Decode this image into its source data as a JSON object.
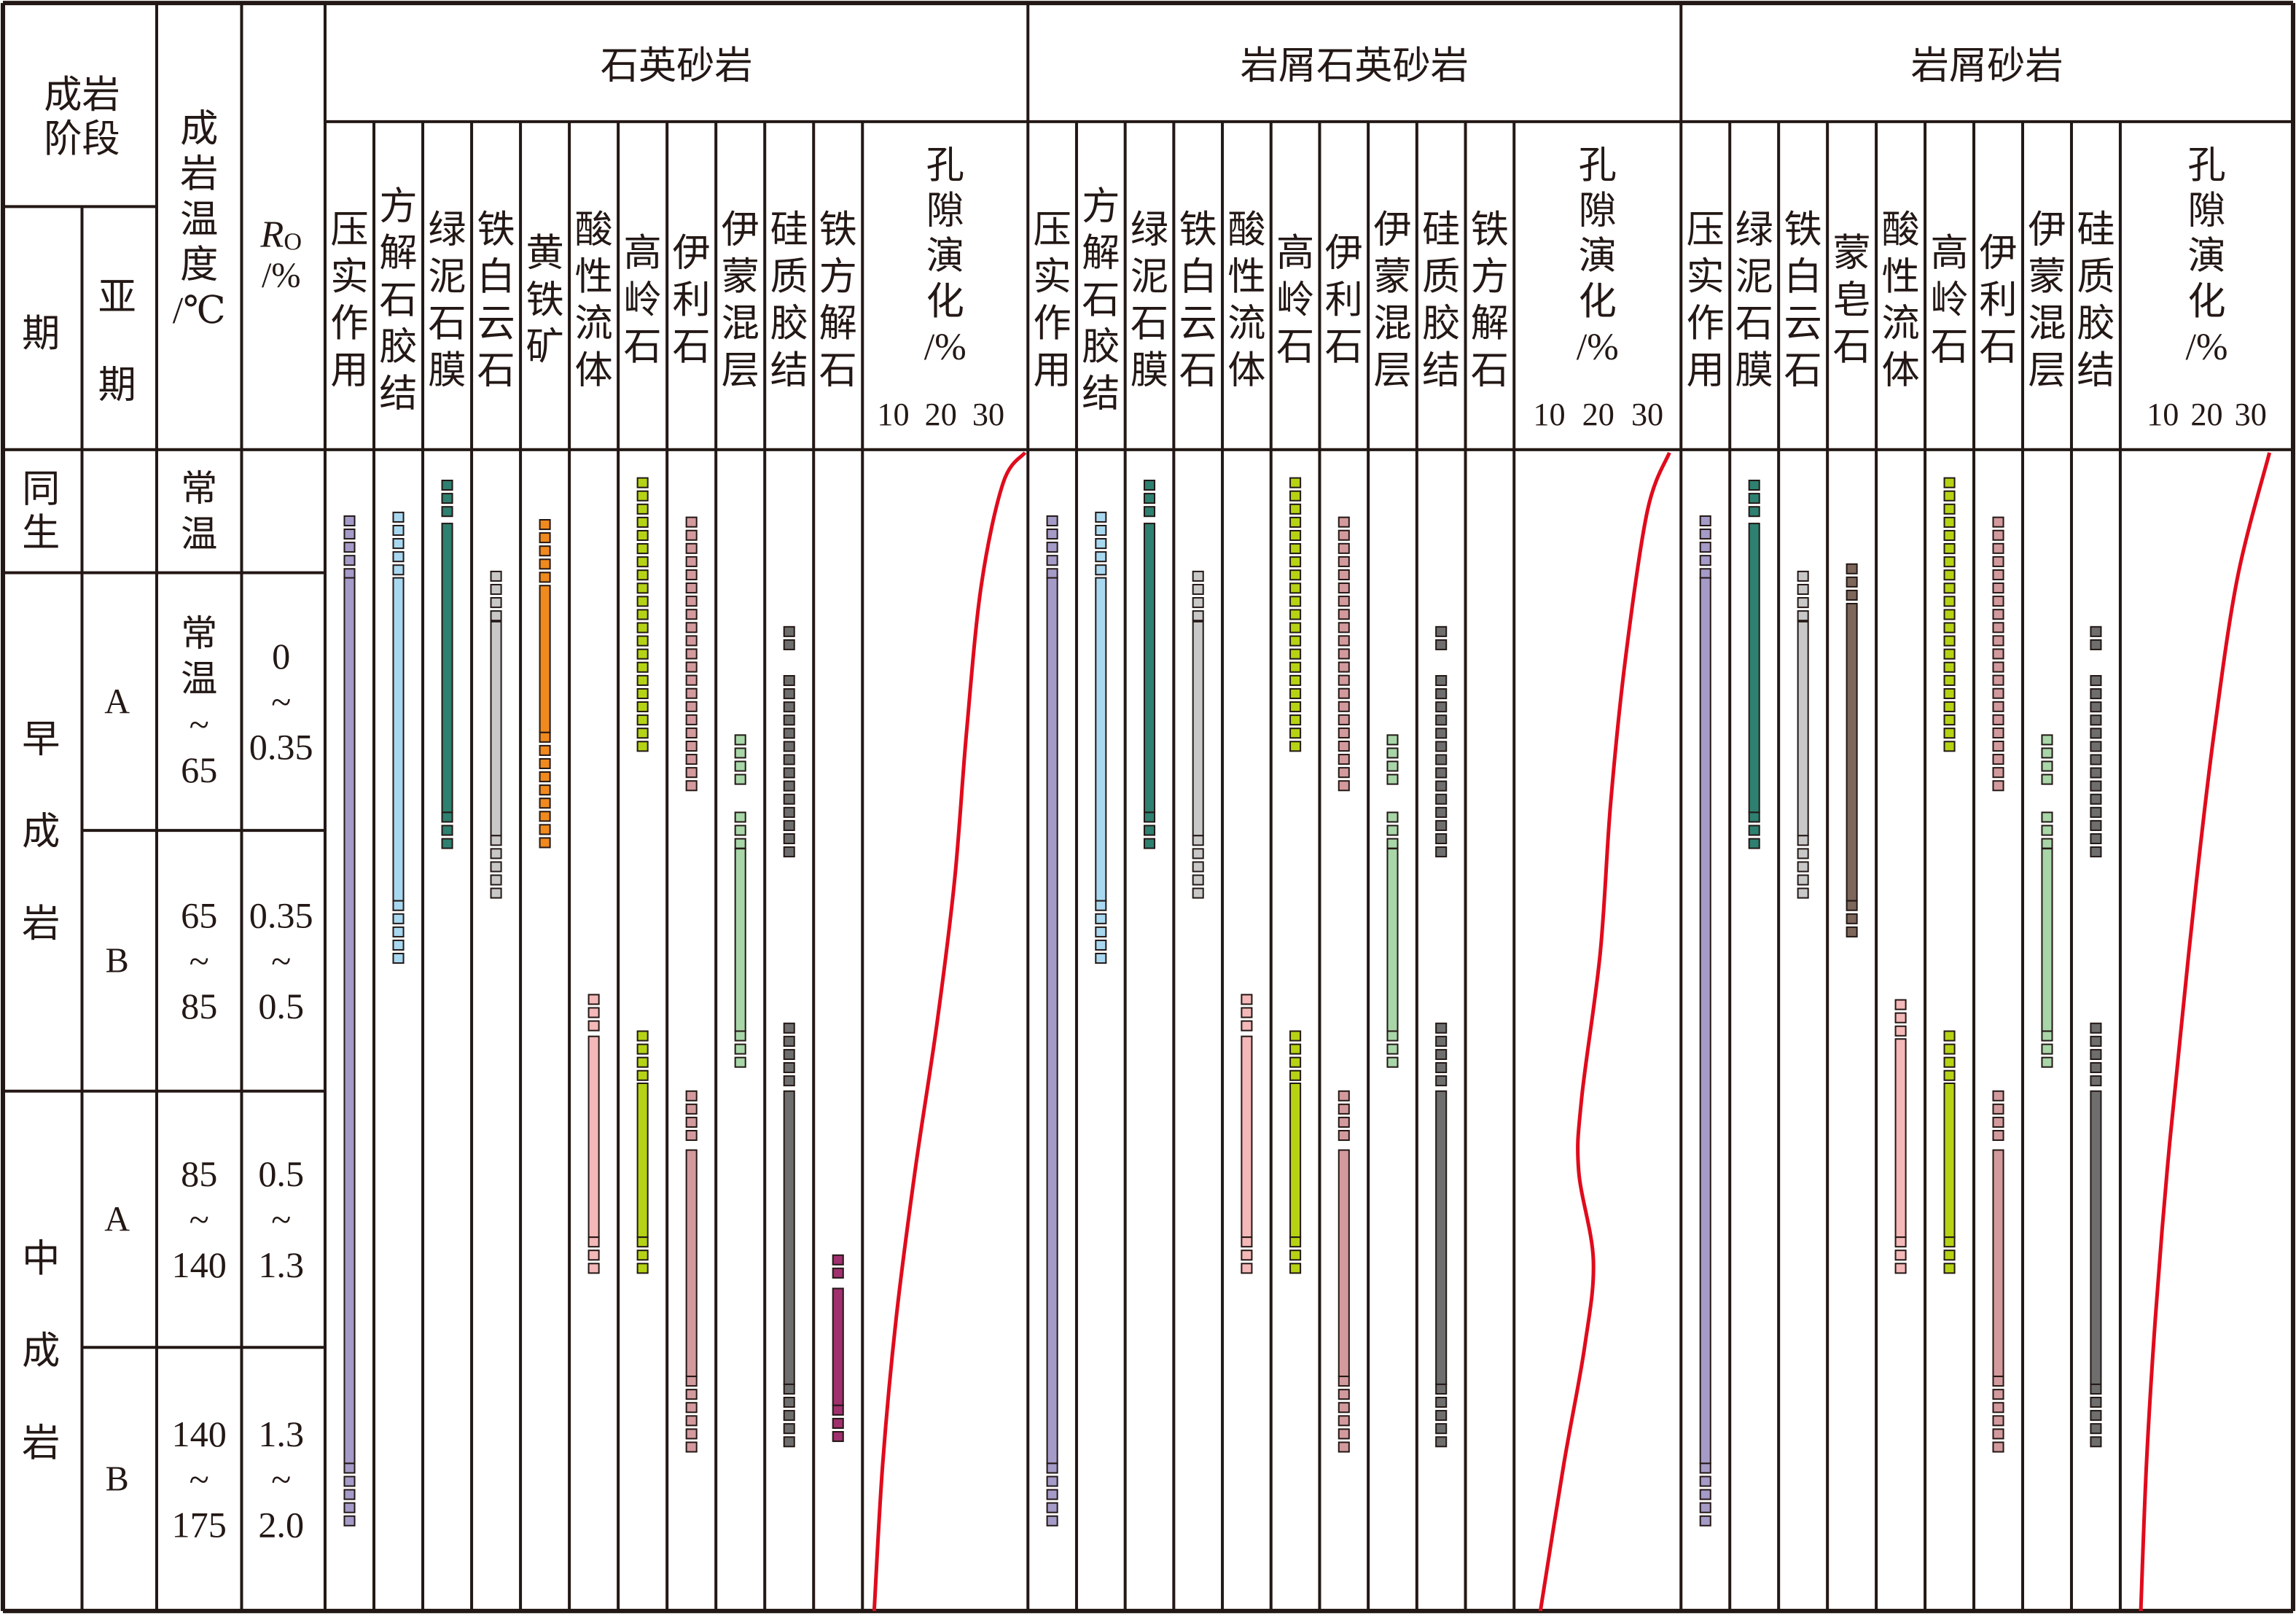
{
  "left_header": {
    "stage": "成岩阶段",
    "stage_lines": [
      "成岩",
      "阶段"
    ],
    "period": "期",
    "subperiod": "亚期",
    "temperature": "成岩温度/℃",
    "ro": {
      "symbol": "R",
      "subscript": "O",
      "unit": "/%"
    }
  },
  "stages": [
    {
      "period": "同生",
      "sub": "",
      "temp": "常温",
      "ro": ""
    },
    {
      "period": "早成岩",
      "sub": "A",
      "temp": "常温~65",
      "ro": "0~0.35"
    },
    {
      "period": "",
      "sub": "B",
      "temp": "65~85",
      "ro": "0.35~0.5"
    },
    {
      "period": "中成岩",
      "sub": "A",
      "temp": "85~140",
      "ro": "0.5~1.3"
    },
    {
      "period": "",
      "sub": "B",
      "temp": "140~175",
      "ro": "1.3~2.0"
    }
  ],
  "colors": {
    "compaction": "#a59bc8",
    "calcite": "#a8d8f0",
    "chlorite": "#2e8070",
    "ankerite": "#c8c8c8",
    "pyrite": "#f08a1e",
    "acid": "#f4b8b8",
    "kaolinite": "#b5d314",
    "illite": "#d39a9d",
    "illite_smectite": "#a8d6a8",
    "silica": "#6e6e6e",
    "ferrocalcite": "#a0306e",
    "smectite": "#7d665a",
    "porosity_curve": "#e00b1c",
    "outline": "#231815"
  },
  "groups": [
    {
      "title": "石英砂岩",
      "porosity_label": "孔隙演化/%",
      "porosity_ticks": [
        "10",
        "20",
        "30"
      ],
      "columns": [
        {
          "label": "压实作用",
          "color": "compaction",
          "segments": [
            [
              0.54,
              1.02,
              "d"
            ],
            [
              1.02,
              4.44,
              "s"
            ],
            [
              4.44,
              4.68,
              "d"
            ]
          ]
        },
        {
          "label": "方解石胶结",
          "color": "calcite",
          "segments": [
            [
              0.51,
              1.02,
              "d"
            ],
            [
              1.02,
              2.27,
              "s"
            ],
            [
              2.27,
              2.51,
              "d"
            ]
          ]
        },
        {
          "label": "绿泥石膜",
          "color": "chlorite",
          "segments": [
            [
              0.25,
              0.6,
              "d"
            ],
            [
              0.6,
              1.93,
              "s"
            ],
            [
              1.93,
              2.1,
              "d"
            ]
          ]
        },
        {
          "label": "铁白云石",
          "color": "ankerite",
          "segments": [
            [
              0.99,
              1.19,
              "d"
            ],
            [
              1.19,
              2.02,
              "s"
            ],
            [
              2.02,
              2.26,
              "d"
            ]
          ]
        },
        {
          "label": "黄铁矿",
          "color": "pyrite",
          "segments": [
            [
              0.57,
              1.05,
              "d"
            ],
            [
              1.05,
              1.62,
              "s"
            ],
            [
              1.62,
              2.1,
              "d"
            ]
          ]
        },
        {
          "label": "酸性流体",
          "color": "acid",
          "segments": [
            [
              2.63,
              2.79,
              "d"
            ],
            [
              2.79,
              3.57,
              "s"
            ],
            [
              3.57,
              3.74,
              "d"
            ]
          ]
        },
        {
          "label": "高岭石",
          "color": "kaolinite",
          "segments": [
            [
              0.23,
              1.7,
              "d"
            ],
            [
              2.77,
              2.97,
              "d"
            ],
            [
              2.97,
              3.57,
              "s"
            ],
            [
              3.57,
              3.74,
              "d"
            ]
          ]
        },
        {
          "label": "伊利石",
          "color": "illite",
          "segments": [
            [
              0.55,
              1.87,
              "d"
            ],
            [
              3.0,
              3.23,
              "d"
            ],
            [
              3.23,
              4.11,
              "s"
            ],
            [
              4.11,
              4.42,
              "d"
            ]
          ]
        },
        {
          "label": "伊蒙混层",
          "color": "illite_smectite",
          "segments": [
            [
              1.63,
              1.83,
              "d"
            ],
            [
              1.93,
              2.07,
              "d"
            ],
            [
              2.07,
              2.77,
              "s"
            ],
            [
              2.77,
              2.92,
              "d"
            ]
          ]
        },
        {
          "label": "硅质胶结",
          "color": "silica",
          "segments": [
            [
              1.21,
              1.3,
              "d"
            ],
            [
              1.4,
              2.14,
              "d"
            ],
            [
              2.74,
              3.0,
              "d"
            ],
            [
              3.0,
              4.14,
              "s"
            ],
            [
              4.14,
              4.42,
              "d"
            ]
          ]
        },
        {
          "label": "铁方解石",
          "color": "ferrocalcite",
          "segments": [
            [
              3.64,
              3.77,
              "d"
            ],
            [
              3.77,
              4.22,
              "s"
            ],
            [
              4.22,
              4.36,
              "d"
            ]
          ]
        }
      ],
      "porosity_curve": [
        [
          0,
          37.7
        ],
        [
          0.27,
          33.1
        ],
        [
          1.05,
          28.5
        ],
        [
          1.62,
          25.4
        ],
        [
          2.19,
          22.9
        ],
        [
          2.74,
          19.2
        ],
        [
          3.31,
          14.6
        ],
        [
          3.89,
          10.6
        ],
        [
          4.44,
          7.8
        ],
        [
          5,
          6.0
        ]
      ]
    },
    {
      "title": "岩屑石英砂岩",
      "porosity_label": "孔隙演化/%",
      "porosity_ticks": [
        "10",
        "20",
        "30"
      ],
      "columns": [
        {
          "label": "压实作用",
          "color": "compaction",
          "segments": [
            [
              0.54,
              1.02,
              "d"
            ],
            [
              1.02,
              4.44,
              "s"
            ],
            [
              4.44,
              4.68,
              "d"
            ]
          ]
        },
        {
          "label": "方解石胶结",
          "color": "calcite",
          "segments": [
            [
              0.51,
              1.02,
              "d"
            ],
            [
              1.02,
              2.27,
              "s"
            ],
            [
              2.27,
              2.51,
              "d"
            ]
          ]
        },
        {
          "label": "绿泥石膜",
          "color": "chlorite",
          "segments": [
            [
              0.25,
              0.6,
              "d"
            ],
            [
              0.6,
              1.93,
              "s"
            ],
            [
              1.93,
              2.1,
              "d"
            ]
          ]
        },
        {
          "label": "铁白云石",
          "color": "ankerite",
          "segments": [
            [
              0.99,
              1.19,
              "d"
            ],
            [
              1.19,
              2.02,
              "s"
            ],
            [
              2.02,
              2.26,
              "d"
            ]
          ]
        },
        {
          "label": "酸性流体",
          "color": "acid",
          "segments": [
            [
              2.63,
              2.79,
              "d"
            ],
            [
              2.79,
              3.57,
              "s"
            ],
            [
              3.57,
              3.74,
              "d"
            ]
          ]
        },
        {
          "label": "高岭石",
          "color": "kaolinite",
          "segments": [
            [
              0.23,
              1.7,
              "d"
            ],
            [
              2.77,
              2.97,
              "d"
            ],
            [
              2.97,
              3.57,
              "s"
            ],
            [
              3.57,
              3.74,
              "d"
            ]
          ]
        },
        {
          "label": "伊利石",
          "color": "illite",
          "segments": [
            [
              0.55,
              1.87,
              "d"
            ],
            [
              3.0,
              3.23,
              "d"
            ],
            [
              3.23,
              4.11,
              "s"
            ],
            [
              4.11,
              4.42,
              "d"
            ]
          ]
        },
        {
          "label": "伊蒙混层",
          "color": "illite_smectite",
          "segments": [
            [
              1.63,
              1.83,
              "d"
            ],
            [
              1.93,
              2.07,
              "d"
            ],
            [
              2.07,
              2.77,
              "s"
            ],
            [
              2.77,
              2.92,
              "d"
            ]
          ]
        },
        {
          "label": "硅质胶结",
          "color": "silica",
          "segments": [
            [
              1.21,
              1.3,
              "d"
            ],
            [
              1.4,
              2.14,
              "d"
            ],
            [
              2.74,
              3.0,
              "d"
            ],
            [
              3.0,
              4.14,
              "s"
            ],
            [
              4.14,
              4.42,
              "d"
            ]
          ]
        },
        {
          "label": "铁方解石",
          "color": "ferrocalcite",
          "segments": []
        }
      ],
      "porosity_curve": [
        [
          0,
          34.5
        ],
        [
          0.5,
          30
        ],
        [
          1.34,
          25.5
        ],
        [
          1.9,
          22.5
        ],
        [
          2.47,
          20.4
        ],
        [
          3.03,
          16.6
        ],
        [
          3.31,
          16
        ],
        [
          3.66,
          19
        ],
        [
          4.0,
          17.2
        ],
        [
          4.44,
          13
        ],
        [
          5,
          8.2
        ]
      ]
    },
    {
      "title": "岩屑砂岩",
      "porosity_label": "孔隙演化/%",
      "porosity_ticks": [
        "10",
        "20",
        "30"
      ],
      "columns": [
        {
          "label": "压实作用",
          "color": "compaction",
          "segments": [
            [
              0.54,
              1.02,
              "d"
            ],
            [
              1.02,
              4.44,
              "s"
            ],
            [
              4.44,
              4.68,
              "d"
            ]
          ]
        },
        {
          "label": "绿泥石膜",
          "color": "chlorite",
          "segments": [
            [
              0.25,
              0.6,
              "d"
            ],
            [
              0.6,
              1.93,
              "s"
            ],
            [
              1.93,
              2.1,
              "d"
            ]
          ]
        },
        {
          "label": "铁白云石",
          "color": "ankerite",
          "segments": [
            [
              0.99,
              1.19,
              "d"
            ],
            [
              1.19,
              2.02,
              "s"
            ],
            [
              2.02,
              2.26,
              "d"
            ]
          ]
        },
        {
          "label": "蒙皂石",
          "color": "smectite",
          "segments": [
            [
              0.93,
              1.12,
              "d"
            ],
            [
              1.12,
              2.27,
              "s"
            ],
            [
              2.27,
              2.41,
              "d"
            ]
          ]
        },
        {
          "label": "酸性流体",
          "color": "acid",
          "segments": [
            [
              2.65,
              2.8,
              "d"
            ],
            [
              2.8,
              3.57,
              "s"
            ],
            [
              3.57,
              3.75,
              "d"
            ]
          ]
        },
        {
          "label": "高岭石",
          "color": "kaolinite",
          "segments": [
            [
              0.23,
              1.7,
              "d"
            ],
            [
              2.77,
              2.97,
              "d"
            ],
            [
              2.97,
              3.57,
              "s"
            ],
            [
              3.57,
              3.74,
              "d"
            ]
          ]
        },
        {
          "label": "伊利石",
          "color": "illite",
          "segments": [
            [
              0.55,
              1.87,
              "d"
            ],
            [
              3.0,
              3.23,
              "d"
            ],
            [
              3.23,
              4.11,
              "s"
            ],
            [
              4.11,
              4.42,
              "d"
            ]
          ]
        },
        {
          "label": "伊蒙混层",
          "color": "illite_smectite",
          "segments": [
            [
              1.63,
              1.83,
              "d"
            ],
            [
              1.93,
              2.07,
              "d"
            ],
            [
              2.07,
              2.77,
              "s"
            ],
            [
              2.77,
              2.92,
              "d"
            ]
          ]
        },
        {
          "label": "硅质胶结",
          "color": "silica",
          "segments": [
            [
              1.21,
              1.3,
              "d"
            ],
            [
              1.4,
              2.14,
              "d"
            ],
            [
              2.74,
              3.0,
              "d"
            ],
            [
              3.0,
              4.14,
              "s"
            ],
            [
              4.14,
              4.42,
              "d"
            ]
          ]
        }
      ],
      "porosity_curve": [
        [
          0,
          34.3
        ],
        [
          1.02,
          27
        ],
        [
          1.62,
          21.7
        ],
        [
          2.19,
          17.7
        ],
        [
          2.74,
          14.3
        ],
        [
          3.31,
          11
        ],
        [
          3.89,
          8.3
        ],
        [
          4.44,
          6.3
        ],
        [
          5,
          5.0
        ]
      ]
    }
  ]
}
